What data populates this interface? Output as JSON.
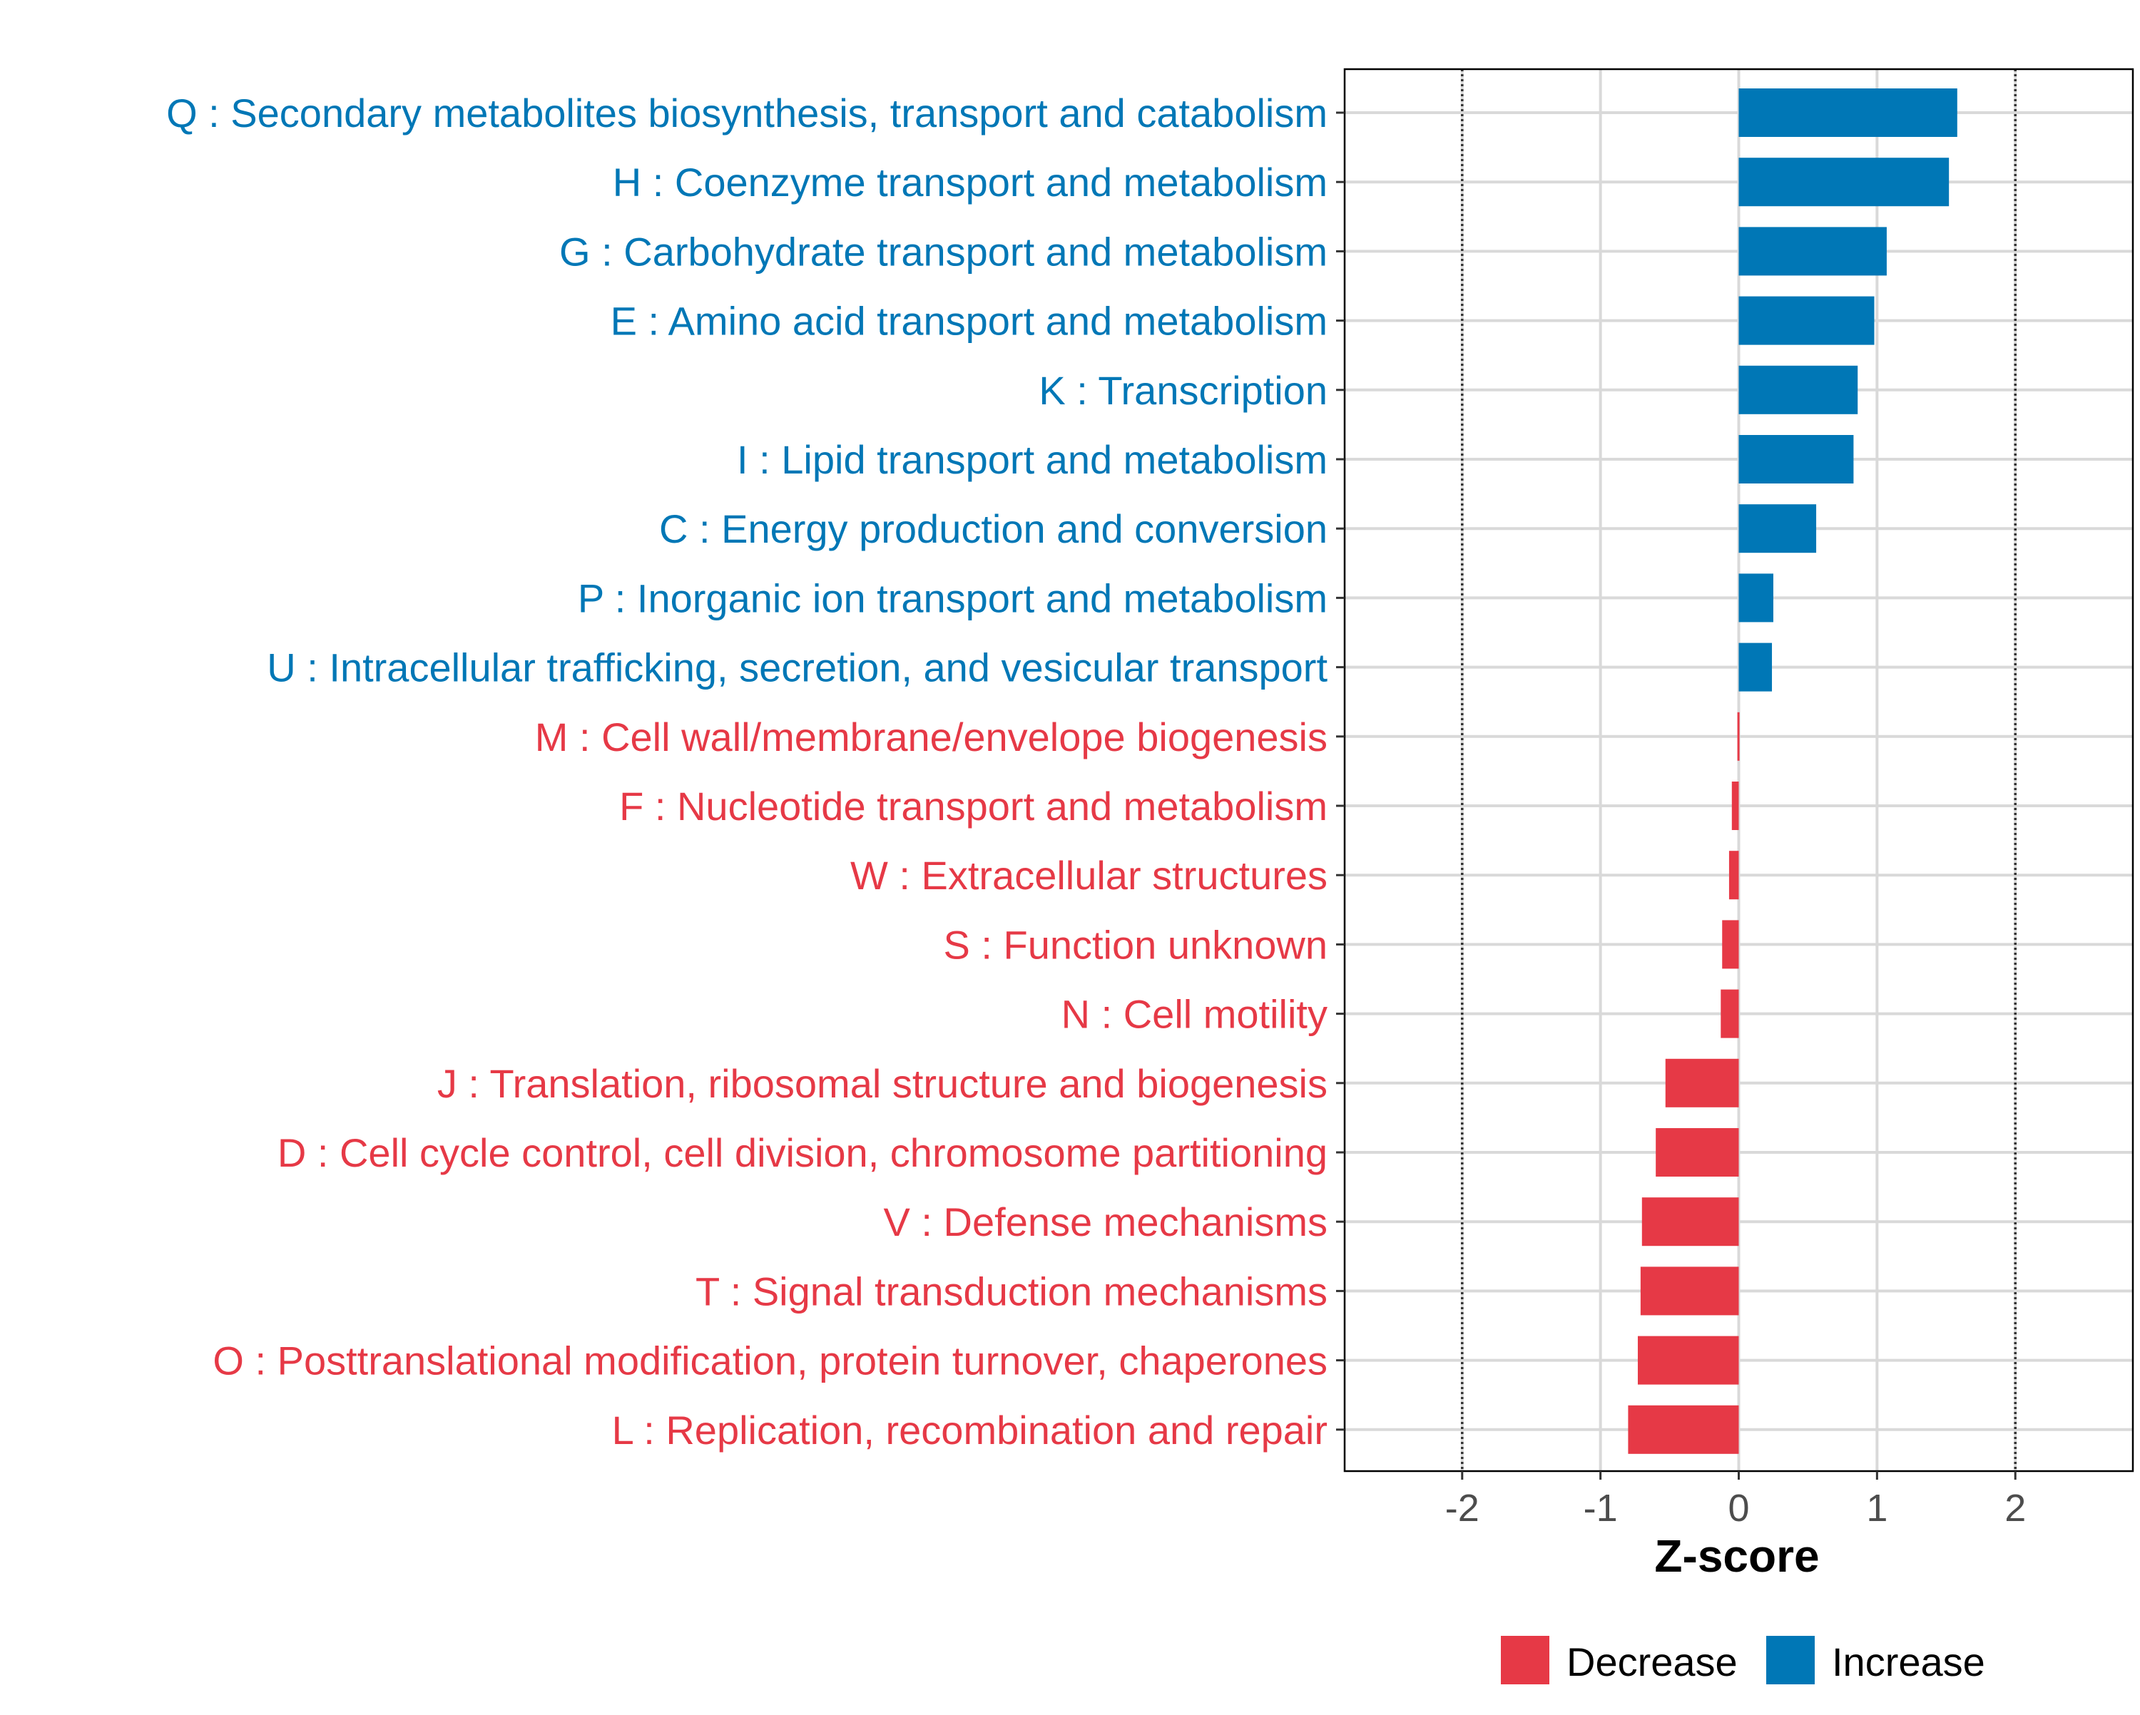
{
  "chart_data": {
    "type": "bar",
    "orientation": "horizontal",
    "xlabel": "Z-score",
    "xlim": [
      -2.85,
      2.85
    ],
    "xticks": [
      -2,
      -1,
      0,
      1,
      2
    ],
    "xtick_labels": [
      "-2",
      "-1",
      "0",
      "1",
      "2"
    ],
    "reference_lines": [
      -2,
      2
    ],
    "grid": true,
    "legend_position": "bottom",
    "categories": [
      "Q : Secondary metabolites biosynthesis, transport and catabolism",
      "H : Coenzyme transport and metabolism",
      "G : Carbohydrate transport and metabolism",
      "E : Amino acid transport and metabolism",
      "K : Transcription",
      "I : Lipid transport and metabolism",
      "C : Energy production and conversion",
      "P : Inorganic ion transport and metabolism",
      "U : Intracellular trafficking, secretion, and vesicular transport",
      "M : Cell wall/membrane/envelope biogenesis",
      "F : Nucleotide transport and metabolism",
      "W : Extracellular structures",
      "S : Function unknown",
      "N : Cell motility",
      "J : Translation, ribosomal structure and biogenesis",
      "D : Cell cycle control, cell division, chromosome partitioning",
      "V : Defense mechanisms",
      "T : Signal transduction mechanisms",
      "O : Posttranslational modification, protein turnover, chaperones",
      "L : Replication, recombination and repair"
    ],
    "values": [
      1.58,
      1.52,
      1.07,
      0.98,
      0.86,
      0.83,
      0.56,
      0.25,
      0.24,
      -0.01,
      -0.05,
      -0.07,
      -0.12,
      -0.13,
      -0.53,
      -0.6,
      -0.7,
      -0.71,
      -0.73,
      -0.8
    ],
    "series": [
      {
        "name": "Decrease",
        "color": "#e63946"
      },
      {
        "name": "Increase",
        "color": "#0077b6"
      }
    ]
  }
}
